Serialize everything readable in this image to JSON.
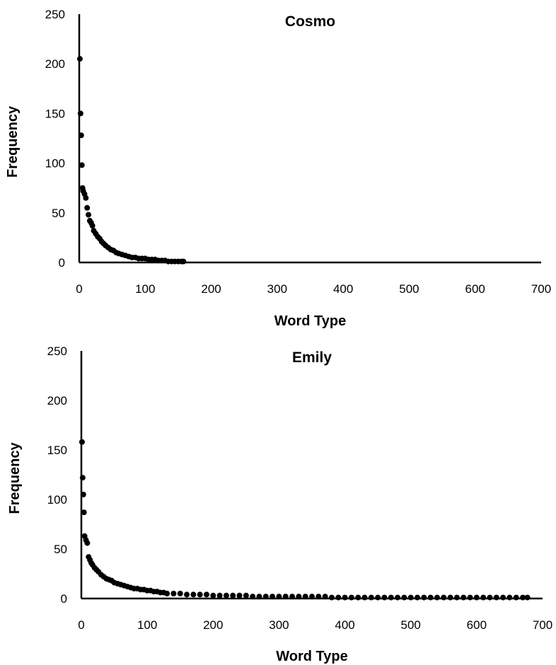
{
  "chart_data": [
    {
      "type": "scatter",
      "title": "Cosmo",
      "xlabel": "Word Type",
      "ylabel": "Frequency",
      "xlim": [
        0,
        700
      ],
      "ylim": [
        0,
        250
      ],
      "xticks": [
        "0",
        "100",
        "200",
        "300",
        "400",
        "500",
        "600",
        "700"
      ],
      "yticks": [
        "0",
        "50",
        "100",
        "150",
        "200",
        "250"
      ],
      "grid": false,
      "marker_color": "#000000",
      "series": [
        {
          "x": [
            1,
            2,
            3,
            4,
            5,
            6,
            8,
            10,
            12,
            14,
            16,
            18,
            20,
            22,
            25,
            28,
            31,
            34,
            37,
            40,
            44,
            48,
            52,
            56,
            60,
            65,
            70,
            75,
            80,
            85,
            90,
            95,
            100,
            105,
            110,
            115,
            120,
            125,
            130,
            135,
            140,
            145,
            150,
            155,
            158
          ],
          "y": [
            205,
            150,
            128,
            98,
            75,
            72,
            69,
            65,
            55,
            48,
            42,
            40,
            37,
            32,
            29,
            26,
            24,
            21,
            19,
            17,
            15,
            13,
            12,
            10,
            9,
            8,
            7,
            6,
            5,
            5,
            4,
            4,
            4,
            3,
            3,
            3,
            2,
            2,
            2,
            1,
            1,
            1,
            1,
            1,
            1
          ]
        }
      ]
    },
    {
      "type": "scatter",
      "title": "Emily",
      "xlabel": "Word Type",
      "ylabel": "Frequency",
      "xlim": [
        0,
        700
      ],
      "ylim": [
        0,
        250
      ],
      "xticks": [
        "0",
        "100",
        "200",
        "300",
        "400",
        "500",
        "600",
        "700"
      ],
      "yticks": [
        "0",
        "50",
        "100",
        "150",
        "200",
        "250"
      ],
      "grid": false,
      "marker_color": "#000000",
      "series": [
        {
          "x": [
            1,
            2,
            3,
            4,
            5,
            7,
            9,
            11,
            13,
            15,
            17,
            20,
            23,
            26,
            30,
            34,
            38,
            42,
            46,
            50,
            55,
            60,
            65,
            70,
            75,
            80,
            85,
            90,
            95,
            100,
            105,
            110,
            115,
            120,
            125,
            130,
            140,
            150,
            160,
            170,
            180,
            190,
            200,
            210,
            220,
            230,
            240,
            250,
            260,
            270,
            280,
            290,
            300,
            310,
            320,
            330,
            340,
            350,
            360,
            370,
            380,
            390,
            400,
            410,
            420,
            430,
            440,
            450,
            460,
            470,
            480,
            490,
            500,
            510,
            520,
            530,
            540,
            550,
            560,
            570,
            580,
            590,
            600,
            610,
            620,
            630,
            640,
            650,
            660,
            670,
            677
          ],
          "y": [
            158,
            122,
            105,
            87,
            63,
            59,
            56,
            42,
            39,
            36,
            34,
            31,
            29,
            27,
            24,
            22,
            20,
            19,
            18,
            16,
            15,
            14,
            13,
            12,
            11,
            10,
            10,
            9,
            9,
            8,
            8,
            7,
            7,
            6,
            6,
            5,
            5,
            5,
            4,
            4,
            4,
            4,
            3,
            3,
            3,
            3,
            3,
            3,
            2,
            2,
            2,
            2,
            2,
            2,
            2,
            2,
            2,
            2,
            2,
            2,
            1,
            1,
            1,
            1,
            1,
            1,
            1,
            1,
            1,
            1,
            1,
            1,
            1,
            1,
            1,
            1,
            1,
            1,
            1,
            1,
            1,
            1,
            1,
            1,
            1,
            1,
            1,
            1,
            1,
            1,
            1
          ]
        }
      ]
    }
  ]
}
